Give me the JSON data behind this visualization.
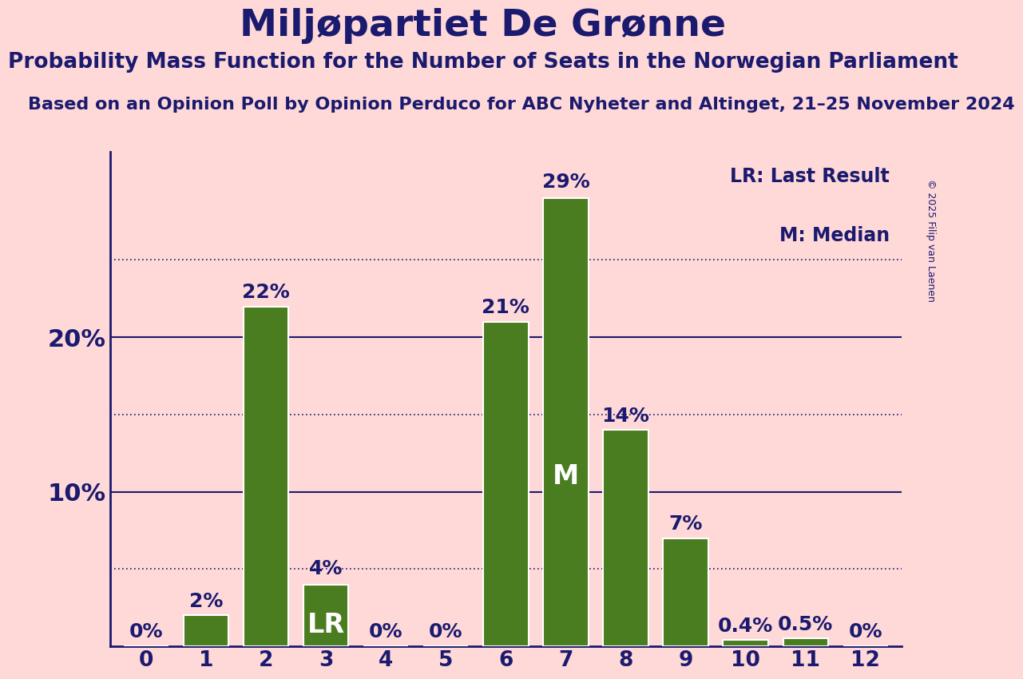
{
  "title": "Miljøpartiet De Grønne",
  "subtitle": "Probability Mass Function for the Number of Seats in the Norwegian Parliament",
  "source_line": "Based on an Opinion Poll by Opinion Perduco for ABC Nyheter and Altinget, 21–25 November 2024",
  "copyright": "© 2025 Filip van Laenen",
  "categories": [
    0,
    1,
    2,
    3,
    4,
    5,
    6,
    7,
    8,
    9,
    10,
    11,
    12
  ],
  "values": [
    0.0,
    2.0,
    22.0,
    4.0,
    0.0,
    0.0,
    21.0,
    29.0,
    14.0,
    7.0,
    0.4,
    0.5,
    0.0
  ],
  "bar_color": "#4a7c20",
  "background_color": "#ffd8d8",
  "title_color": "#1a1a6e",
  "axis_color": "#1a1a6e",
  "label_color": "#1a1a6e",
  "grid_color": "#1a1a6e",
  "lr_bar": 3,
  "median_bar": 7,
  "lr_label": "LR",
  "median_label": "M",
  "inside_label_color": "#ffffff",
  "legend_lr": "LR: Last Result",
  "legend_m": "M: Median",
  "ylabel_ticks": [
    10,
    20
  ],
  "dotted_ticks": [
    5,
    15,
    25
  ],
  "ylim": [
    0,
    32
  ],
  "title_fontsize": 34,
  "subtitle_fontsize": 19,
  "source_fontsize": 16,
  "tick_fontsize": 19,
  "bar_label_fontsize": 18,
  "ylabel_fontsize": 22,
  "legend_fontsize": 17,
  "inside_label_fontsize": 24
}
